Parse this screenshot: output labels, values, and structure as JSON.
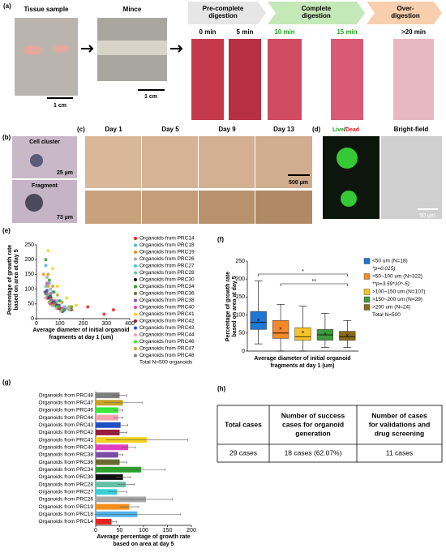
{
  "panels": {
    "a": "(a)",
    "b": "(b)",
    "c": "(c)",
    "d": "(d)",
    "e": "(e)",
    "f": "(f)",
    "g": "(g)",
    "h": "(h)"
  },
  "panel_a": {
    "tissue": "Tissue sample",
    "mince": "Mince",
    "scale1": "1 cm",
    "scale2": "1 cm",
    "stages": [
      [
        "Pre-complete",
        "digestion"
      ],
      [
        "Complete",
        "digestion"
      ],
      [
        "Over-",
        "digestion"
      ]
    ],
    "times": [
      "0 min",
      "5 min",
      "10 min",
      "15 min",
      ">20 min"
    ]
  },
  "panel_b": {
    "cluster": "Cell cluster",
    "cluster_scale": "25 µm",
    "fragment": "Fragment",
    "fragment_scale": "73 µm"
  },
  "panel_c": {
    "days": [
      "Day 1",
      "Day 5",
      "Day 9",
      "Day 13"
    ],
    "scale": "500 µm"
  },
  "panel_d": {
    "live": "Live",
    "slash": "/",
    "dead": "Dead",
    "bright": "Bright-field",
    "scale": "50 µm"
  },
  "chart_data": [
    {
      "type": "scatter",
      "xlabel": [
        "Average diameter of initial organoid",
        "fragments at day 1 (um)"
      ],
      "ylabel": [
        "Percentage of growth rate",
        "based on area at day 5"
      ],
      "xlim": [
        0,
        400
      ],
      "xticks": [
        0,
        100,
        200,
        300,
        400
      ],
      "ylim": [
        0,
        250
      ],
      "yticks": [
        0,
        50,
        100,
        150,
        200,
        250
      ],
      "annotation": "Total N=500 organoids",
      "series": [
        {
          "name": "Organoids from PRC14",
          "color": "#e8231f",
          "x": [
            60,
            150,
            220,
            290,
            330
          ],
          "y": [
            50,
            30,
            40,
            15,
            30
          ]
        },
        {
          "name": "Organoids from PRC18",
          "color": "#4fb3e8",
          "x": [
            40,
            55,
            70,
            90,
            120
          ],
          "y": [
            180,
            120,
            90,
            60,
            40
          ]
        },
        {
          "name": "Organoids from PRC19",
          "color": "#f28e1c",
          "x": [
            30,
            50,
            65,
            85,
            110
          ],
          "y": [
            150,
            110,
            70,
            50,
            30
          ]
        },
        {
          "name": "Organoids from PRC26",
          "color": "#a8a8a8",
          "x": [
            45,
            60,
            80,
            100,
            130
          ],
          "y": [
            140,
            100,
            60,
            45,
            35
          ]
        },
        {
          "name": "Organoids from PRC27",
          "color": "#35d0d8",
          "x": [
            35,
            50,
            70,
            95,
            115
          ],
          "y": [
            90,
            70,
            50,
            40,
            25
          ]
        },
        {
          "name": "Organoids from PRC28",
          "color": "#66c2a5",
          "x": [
            40,
            60,
            75,
            95,
            140
          ],
          "y": [
            110,
            80,
            55,
            45,
            30
          ]
        },
        {
          "name": "Organoids from PRC30",
          "color": "#111111",
          "x": [
            45,
            55,
            70,
            90,
            110
          ],
          "y": [
            70,
            55,
            45,
            35,
            25
          ]
        },
        {
          "name": "Organoids from PRC34",
          "color": "#2ca02c",
          "x": [
            40,
            55,
            75,
            100,
            150
          ],
          "y": [
            200,
            130,
            90,
            60,
            40
          ]
        },
        {
          "name": "Organoids from PRC36",
          "color": "#6b6b2f",
          "x": [
            50,
            65,
            80,
            95,
            120
          ],
          "y": [
            75,
            60,
            50,
            40,
            30
          ]
        },
        {
          "name": "Organoids from PRC38",
          "color": "#7b4fa8",
          "x": [
            40,
            60,
            70,
            85,
            105
          ],
          "y": [
            85,
            65,
            50,
            40,
            30
          ]
        },
        {
          "name": "Organoids from PRC40",
          "color": "#e040c0",
          "x": [
            45,
            60,
            75,
            90,
            110
          ],
          "y": [
            120,
            85,
            60,
            45,
            35
          ]
        },
        {
          "name": "Organoids from PRC41",
          "color": "#f5d21f",
          "x": [
            50,
            70,
            90,
            130,
            170
          ],
          "y": [
            230,
            170,
            110,
            70,
            45
          ]
        },
        {
          "name": "Organoids from PRC42",
          "color": "#9b1b3a",
          "x": [
            40,
            55,
            70,
            85,
            100
          ],
          "y": [
            90,
            70,
            55,
            45,
            35
          ]
        },
        {
          "name": "Organoids from PRC43",
          "color": "#1f4fc4",
          "x": [
            45,
            60,
            75,
            95,
            120
          ],
          "y": [
            95,
            75,
            55,
            45,
            30
          ]
        },
        {
          "name": "Organoids from PRC44",
          "color": "#f4a0b0",
          "x": [
            40,
            55,
            70,
            85,
            105
          ],
          "y": [
            70,
            55,
            45,
            35,
            25
          ]
        },
        {
          "name": "Organoids from PRC46",
          "color": "#39e639",
          "x": [
            45,
            60,
            75,
            90,
            110
          ],
          "y": [
            80,
            60,
            45,
            40,
            30
          ]
        },
        {
          "name": "Organoids from PRC47",
          "color": "#c9a227",
          "x": [
            50,
            70,
            90,
            110,
            140
          ],
          "y": [
            150,
            110,
            80,
            55,
            40
          ]
        },
        {
          "name": "Organoids from PRC48",
          "color": "#808080",
          "x": [
            45,
            60,
            75,
            95,
            120
          ],
          "y": [
            85,
            65,
            50,
            40,
            30
          ]
        }
      ]
    },
    {
      "type": "box",
      "xlabel": [
        "Average diameter of initial organoid",
        "fragments at day 1 (um)"
      ],
      "ylabel": [
        "Percentage of growth rate",
        "based on area at day 5"
      ],
      "ylim": [
        0,
        250
      ],
      "yticks": [
        0,
        50,
        100,
        150,
        200,
        250
      ],
      "notes": [
        "*p=0.015)",
        "**p=3.59*10^-5)"
      ],
      "total": "Total N=500",
      "significance": [
        "*",
        "**"
      ],
      "series": [
        {
          "name": "<50 um (N=18)",
          "color": "#1f77d4",
          "low": 20,
          "q1": 60,
          "median": 80,
          "q3": 110,
          "high": 195,
          "mean": 85
        },
        {
          "name": ">50~100 um (N=322)",
          "color": "#f5892a",
          "low": 0,
          "q1": 35,
          "median": 50,
          "q3": 85,
          "high": 130,
          "mean": 62
        },
        {
          "name": ">100~150 um (N=107)",
          "color": "#f7c325",
          "low": 0,
          "q1": 30,
          "median": 40,
          "q3": 65,
          "high": 125,
          "mean": 52
        },
        {
          "name": ">150~200 um (N=29)",
          "color": "#3f9a3f",
          "low": 10,
          "q1": 30,
          "median": 45,
          "q3": 60,
          "high": 105,
          "mean": 47
        },
        {
          "name": ">200 um (N=24)",
          "color": "#8a6a1a",
          "low": 10,
          "q1": 30,
          "median": 40,
          "q3": 55,
          "high": 85,
          "mean": 42
        }
      ]
    },
    {
      "type": "bar",
      "orientation": "horizontal",
      "xlabel": [
        "Average percentage of growth rate",
        "based on area at day 5"
      ],
      "xlim": [
        0,
        200
      ],
      "xticks": [
        0,
        50,
        100,
        150,
        200
      ],
      "categories": [
        "Organoids from PRC48",
        "Organoids from PRC47",
        "Organoids from PRC46",
        "Organoids from PRC44",
        "Organoids from PRC43",
        "Organoids from PRC42",
        "Organoids from PRC41",
        "Organoids from PRC40",
        "Organoids from PRC38",
        "Organoids from PRC36",
        "Organoids from PRC34",
        "Organoids from PRC30",
        "Organoids from PRC28",
        "Organoids from PRC27",
        "Organoids from PRC26",
        "Organoids from PRC19",
        "Organoids from PRC18",
        "Organoids from PRC14"
      ],
      "values": [
        50,
        57,
        47,
        47,
        52,
        50,
        107,
        68,
        47,
        50,
        95,
        57,
        63,
        45,
        105,
        70,
        87,
        33
      ],
      "errors": [
        15,
        40,
        10,
        10,
        15,
        15,
        85,
        15,
        10,
        15,
        50,
        15,
        18,
        20,
        55,
        20,
        90,
        10
      ],
      "colors": [
        "#808080",
        "#c9a227",
        "#39e639",
        "#f4a0b0",
        "#1f4fc4",
        "#9b1b3a",
        "#f5d21f",
        "#e040c0",
        "#7b4fa8",
        "#6b6b2f",
        "#2ca02c",
        "#111111",
        "#66c2a5",
        "#35d0d8",
        "#a8a8a8",
        "#f28e1c",
        "#4fb3e8",
        "#e8231f"
      ]
    }
  ],
  "table": {
    "header": [
      [
        "Total cases"
      ],
      [
        "Number of success",
        "cases for organoid",
        "generation"
      ],
      [
        "Number of cases",
        "for validations and",
        "drug screening"
      ]
    ],
    "rows": [
      [
        "29 cases",
        "18 cases (62.07%)",
        "11 cases"
      ]
    ]
  }
}
